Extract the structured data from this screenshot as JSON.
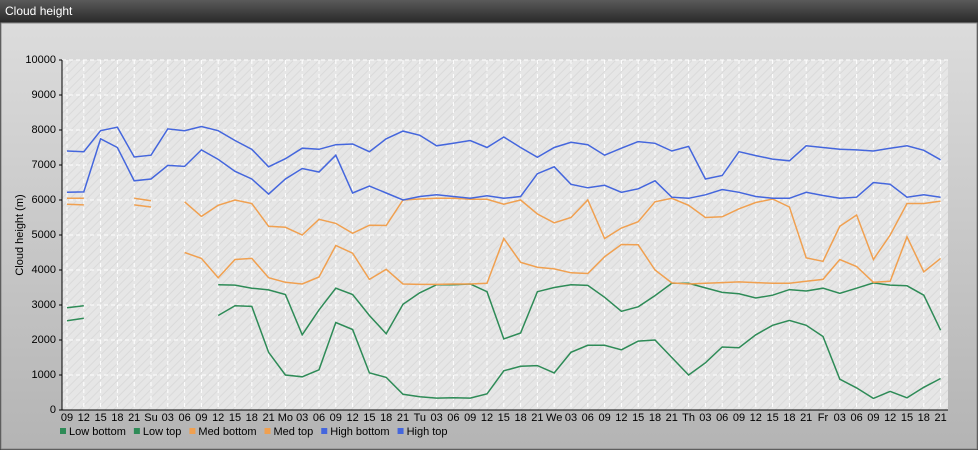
{
  "chart_data": {
    "type": "line",
    "title": "Cloud height",
    "y_label": "Cloud height (m)",
    "categories": [
      "09",
      "12",
      "15",
      "18",
      "21",
      "Su",
      "03",
      "06",
      "09",
      "12",
      "15",
      "18",
      "21",
      "Mo",
      "03",
      "06",
      "09",
      "12",
      "15",
      "18",
      "21",
      "Tu",
      "03",
      "06",
      "09",
      "12",
      "15",
      "18",
      "21",
      "We",
      "03",
      "06",
      "09",
      "12",
      "15",
      "18",
      "21",
      "Th",
      "03",
      "06",
      "09",
      "12",
      "15",
      "18",
      "21",
      "Fr",
      "03",
      "06",
      "09",
      "12",
      "15",
      "18",
      "21"
    ],
    "ylim": [
      0,
      10000
    ],
    "yticks": [
      0,
      1000,
      2000,
      3000,
      4000,
      5000,
      6000,
      7000,
      8000,
      9000,
      10000
    ],
    "grid": true,
    "legend": "bottom-left",
    "series": [
      {
        "name": "Low bottom",
        "color": "#2e8b57",
        "values": [
          2550,
          2620,
          null,
          null,
          null,
          null,
          null,
          null,
          null,
          2700,
          2980,
          2960,
          1650,
          1000,
          950,
          1150,
          2500,
          2300,
          1060,
          930,
          450,
          380,
          340,
          350,
          340,
          460,
          1120,
          1250,
          1270,
          1060,
          1650,
          1850,
          1850,
          1720,
          1970,
          2000,
          1500,
          1000,
          1350,
          1800,
          1780,
          2150,
          2420,
          2560,
          2420,
          2100,
          880,
          630,
          330,
          530,
          350,
          650,
          900
        ]
      },
      {
        "name": "Low top",
        "color": "#2e8b57",
        "values": [
          2920,
          2980,
          null,
          null,
          null,
          null,
          null,
          null,
          null,
          3580,
          3570,
          3480,
          3430,
          3300,
          2150,
          2860,
          3480,
          3300,
          2700,
          2180,
          3020,
          3350,
          3580,
          3580,
          3600,
          3380,
          2030,
          2200,
          3380,
          3500,
          3580,
          3560,
          3220,
          2820,
          2950,
          3270,
          3620,
          3620,
          3490,
          3360,
          3320,
          3200,
          3280,
          3440,
          3400,
          3480,
          3330,
          3480,
          3630,
          3570,
          3550,
          3280,
          2280
        ]
      },
      {
        "name": "Med bottom",
        "color": "#f0a050",
        "values": [
          5880,
          5860,
          null,
          null,
          5860,
          5800,
          null,
          4500,
          4330,
          3780,
          4300,
          4330,
          3780,
          3650,
          3600,
          3800,
          4700,
          4480,
          3730,
          4020,
          3600,
          3590,
          3590,
          3600,
          3600,
          3620,
          4900,
          4220,
          4080,
          4030,
          3920,
          3900,
          4380,
          4730,
          4720,
          4000,
          3630,
          3600,
          3620,
          3640,
          3660,
          3640,
          3620,
          3620,
          3680,
          3730,
          4300,
          4100,
          3650,
          3680,
          4950,
          3950,
          4330
        ]
      },
      {
        "name": "Med top",
        "color": "#f0a050",
        "values": [
          6050,
          6050,
          null,
          null,
          6050,
          5980,
          null,
          5950,
          5530,
          5850,
          6000,
          5900,
          5250,
          5220,
          5000,
          5450,
          5330,
          5050,
          5280,
          5270,
          6000,
          6030,
          6050,
          6050,
          6020,
          6020,
          5880,
          6000,
          5600,
          5350,
          5500,
          6000,
          4900,
          5200,
          5380,
          5950,
          6050,
          5850,
          5500,
          5520,
          5750,
          5930,
          6030,
          5800,
          4350,
          4250,
          5250,
          5570,
          4300,
          5000,
          5900,
          5900,
          5970
        ]
      },
      {
        "name": "High bottom",
        "color": "#4466dd",
        "values": [
          6220,
          6230,
          7750,
          7500,
          6550,
          6600,
          6990,
          6960,
          7430,
          7160,
          6820,
          6600,
          6170,
          6600,
          6900,
          6800,
          7280,
          6200,
          6400,
          6200,
          6000,
          6100,
          6150,
          6100,
          6050,
          6120,
          6050,
          6100,
          6750,
          6950,
          6450,
          6350,
          6420,
          6220,
          6320,
          6550,
          6080,
          6050,
          6150,
          6300,
          6220,
          6100,
          6050,
          6050,
          6220,
          6130,
          6050,
          6080,
          6500,
          6450,
          6080,
          6150,
          6080
        ]
      },
      {
        "name": "High top",
        "color": "#4466dd",
        "values": [
          7400,
          7380,
          7980,
          8080,
          7230,
          7280,
          8030,
          7980,
          8100,
          7980,
          7700,
          7450,
          6950,
          7180,
          7480,
          7450,
          7580,
          7600,
          7380,
          7750,
          7970,
          7850,
          7550,
          7620,
          7700,
          7500,
          7800,
          7500,
          7220,
          7500,
          7650,
          7580,
          7280,
          7480,
          7670,
          7620,
          7400,
          7530,
          6600,
          6700,
          7380,
          7270,
          7170,
          7120,
          7550,
          7500,
          7450,
          7430,
          7400,
          7480,
          7550,
          7420,
          7150
        ]
      }
    ]
  }
}
